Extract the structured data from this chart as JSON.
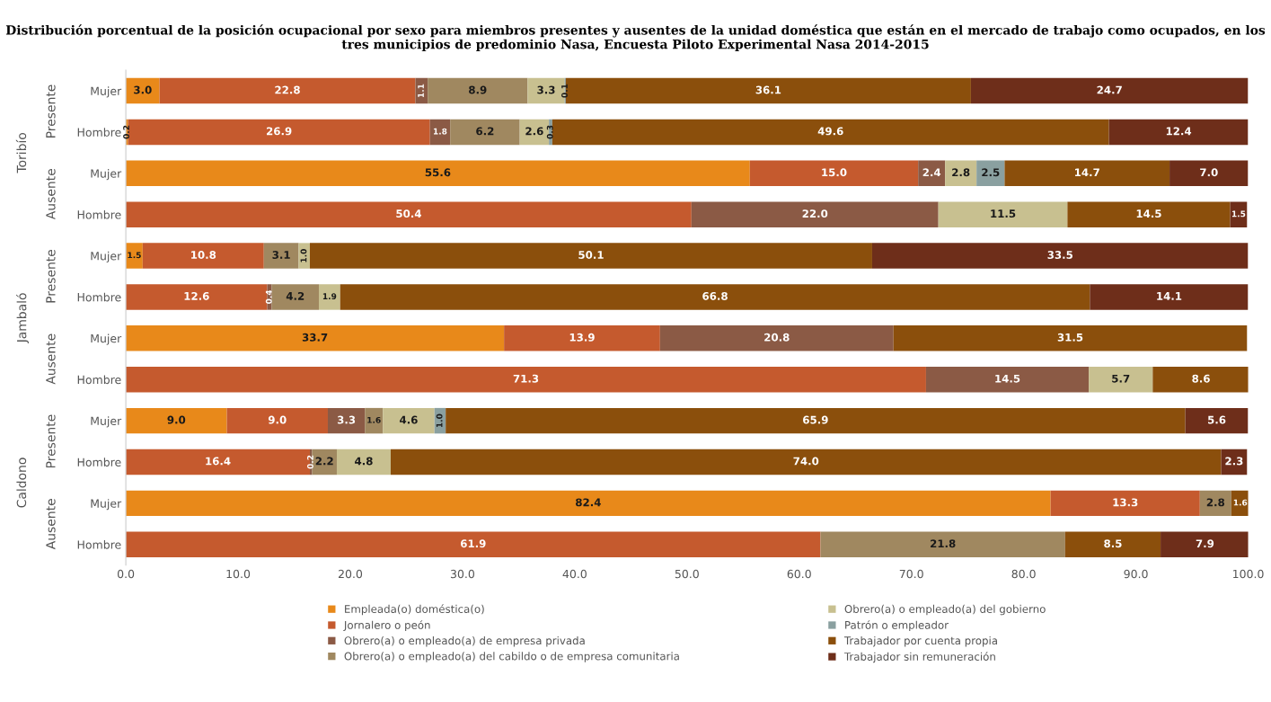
{
  "chart_data": {
    "type": "bar",
    "orientation": "horizontal",
    "stacked": true,
    "title": "Distribución porcentual de la posición ocupacional por sexo para miembros presentes y ausentes de la unidad doméstica que están en el mercado de trabajo como ocupados, en los tres municipios de predominio Nasa, Encuesta Piloto Experimental Nasa 2014-2015",
    "categories": [
      "Mujer",
      "Hombre",
      "Mujer",
      "Hombre",
      "Mujer",
      "Hombre",
      "Mujer",
      "Hombre",
      "Mujer",
      "Hombre",
      "Mujer",
      "Hombre"
    ],
    "annotations": [
      "Presente",
      "Ausente",
      "Presente",
      "Ausente",
      "Presente",
      "Ausente",
      "Toribío",
      "Jambaló",
      "Caldono"
    ],
    "series": [
      {
        "name": "Empleada(o) doméstica(o)",
        "color": "#e8891a",
        "values": [
          3.0,
          0.2,
          55.6,
          null,
          1.5,
          null,
          33.7,
          null,
          9.0,
          null,
          82.4,
          null
        ],
        "value_labels": [
          "3.0",
          "0.2",
          "55.6",
          null,
          "1.5",
          null,
          "33.7",
          null,
          "9.0",
          null,
          "82.4",
          null
        ]
      },
      {
        "name": "Jornalero o peón",
        "color": "#c55a2e",
        "values": [
          22.8,
          26.9,
          15.0,
          50.4,
          10.8,
          12.6,
          13.9,
          71.3,
          9.0,
          16.4,
          13.3,
          61.9
        ],
        "value_labels": [
          "22.8",
          "26.9",
          "15.0",
          "50.4",
          "10.8",
          "12.6",
          "13.9",
          "71.3",
          "9.0",
          "16.4",
          "13.3",
          "61.9"
        ]
      },
      {
        "name": "Obrero(a) o empleado(a) de empresa privada",
        "color": "#8b5a45",
        "values": [
          1.1,
          1.8,
          2.4,
          22.0,
          null,
          0.4,
          20.8,
          14.5,
          3.3,
          0.2,
          null,
          null
        ],
        "value_labels": [
          "1.1",
          "1.8",
          "2.4",
          "22.0",
          null,
          "0.4",
          "20.8",
          "14.5",
          "3.3",
          "0.2",
          null,
          null
        ]
      },
      {
        "name": "Obrero(a) o empleado(a) del cabildo o de empresa comunitaria",
        "color": "#a08860",
        "values": [
          8.9,
          6.2,
          null,
          null,
          3.1,
          4.2,
          null,
          null,
          1.6,
          2.2,
          2.8,
          21.8
        ],
        "value_labels": [
          "8.9",
          "6.2",
          null,
          null,
          "3.1",
          "4.2",
          null,
          null,
          "1.6",
          "2.2",
          "2.8",
          "21.8"
        ]
      },
      {
        "name": "Obrero(a) o empleado(a) del gobierno",
        "color": "#c8c090",
        "values": [
          3.3,
          2.6,
          2.8,
          11.5,
          1.0,
          1.9,
          null,
          5.7,
          4.6,
          4.8,
          null,
          null
        ],
        "value_labels": [
          "3.3",
          "2.6",
          "2.8",
          "11.5",
          "1.0",
          "1.9",
          null,
          "5.7",
          "4.6",
          "4.8",
          null,
          null
        ]
      },
      {
        "name": "Patrón o empleador",
        "color": "#8aa0a0",
        "values": [
          0.1,
          0.3,
          2.5,
          null,
          null,
          null,
          null,
          null,
          1.0,
          null,
          null,
          null
        ],
        "value_labels": [
          "0.1",
          "0.3",
          "2.5",
          null,
          null,
          null,
          null,
          null,
          "1.0",
          null,
          null,
          null
        ]
      },
      {
        "name": "Trabajador por cuenta propia",
        "color": "#8b4f0c",
        "values": [
          36.1,
          49.6,
          14.7,
          14.5,
          50.1,
          66.8,
          31.5,
          8.6,
          65.9,
          74.0,
          1.6,
          8.5
        ],
        "value_labels": [
          "36.1",
          "49.6",
          "14.7",
          "14.5",
          "50.1",
          "66.8",
          "31.5",
          "8.6",
          "65.9",
          "74.0",
          "1.6",
          "8.5"
        ]
      },
      {
        "name": "Trabajador sin remuneración",
        "color": "#6e2e1a",
        "values": [
          24.7,
          12.4,
          7.0,
          1.5,
          33.5,
          14.1,
          null,
          null,
          5.6,
          2.3,
          null,
          7.9
        ],
        "value_labels": [
          "24.7",
          "12.4",
          "7.0",
          "1.5",
          "33.5",
          "14.1",
          null,
          null,
          "5.6",
          "2.3",
          null,
          "7.9"
        ]
      }
    ],
    "xlim": [
      0,
      100
    ],
    "xticks": [
      {
        "value": 0,
        "label": "0.0"
      },
      {
        "value": 10,
        "label": "10.0"
      },
      {
        "value": 20,
        "label": "20.0"
      },
      {
        "value": 30,
        "label": "30.0"
      },
      {
        "value": 40,
        "label": "40.0"
      },
      {
        "value": 50,
        "label": "50.0"
      },
      {
        "value": 60,
        "label": "60.0"
      },
      {
        "value": 70,
        "label": "70.0"
      },
      {
        "value": 80,
        "label": "80.0"
      },
      {
        "value": 90,
        "label": "90.0"
      },
      {
        "value": 100,
        "label": "100.0"
      }
    ],
    "grid": false,
    "legend": "bottom"
  }
}
